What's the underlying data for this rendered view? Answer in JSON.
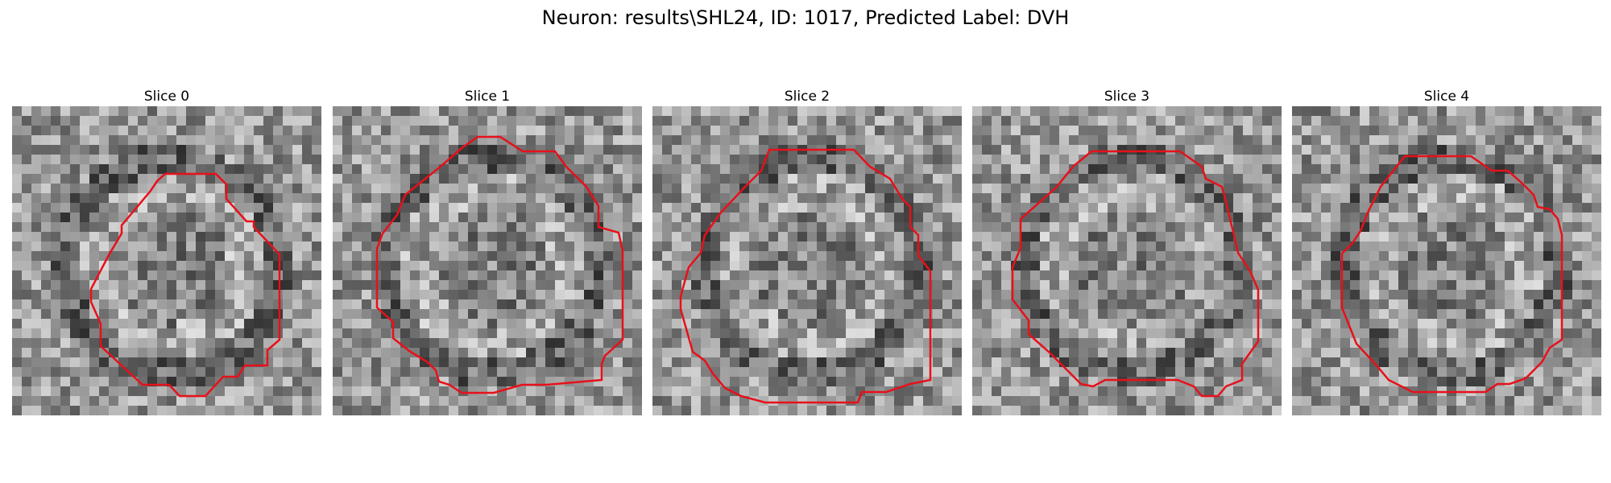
{
  "figure": {
    "title": "Neuron: results\\SHL24, ID: 1017, Predicted Label: DVH"
  },
  "slices": [
    {
      "title": "Slice 0"
    },
    {
      "title": "Slice 1"
    },
    {
      "title": "Slice 2"
    },
    {
      "title": "Slice 3"
    },
    {
      "title": "Slice 4"
    }
  ],
  "colors": {
    "contour": "#e8101a",
    "background": "#ffffff"
  }
}
